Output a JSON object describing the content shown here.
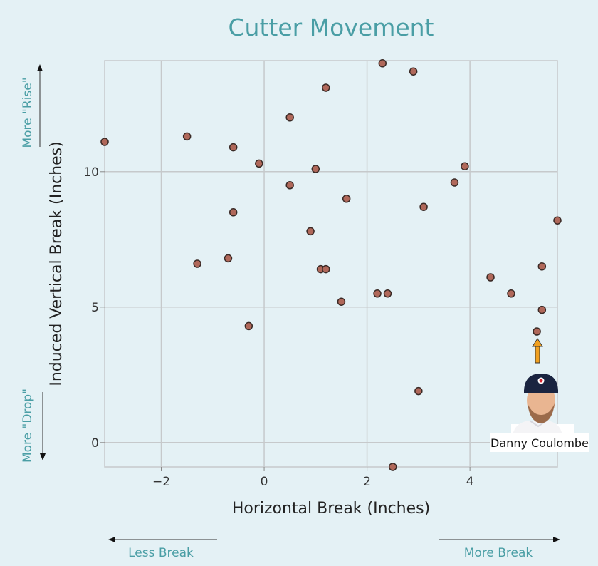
{
  "chart_data": {
    "type": "scatter",
    "title": "Cutter Movement",
    "xlabel": "Horizontal Break (Inches)",
    "ylabel": "Induced Vertical Break (Inches)",
    "xlim": [
      -3.1,
      5.7
    ],
    "ylim": [
      -0.9,
      14.1
    ],
    "x_ticks": [
      -2,
      0,
      2,
      4
    ],
    "y_ticks": [
      0,
      5,
      10
    ],
    "x_tick_labels": [
      "−2",
      "0",
      "2",
      "4"
    ],
    "y_tick_labels": [
      "0",
      "5",
      "10"
    ],
    "grid": true,
    "points": [
      {
        "x": -3.1,
        "y": 11.1
      },
      {
        "x": -1.5,
        "y": 11.3
      },
      {
        "x": -1.3,
        "y": 6.6
      },
      {
        "x": -0.7,
        "y": 6.8
      },
      {
        "x": -0.6,
        "y": 10.9
      },
      {
        "x": -0.6,
        "y": 8.5
      },
      {
        "x": -0.3,
        "y": 4.3
      },
      {
        "x": -0.1,
        "y": 10.3
      },
      {
        "x": 0.5,
        "y": 12.0
      },
      {
        "x": 0.5,
        "y": 9.5
      },
      {
        "x": 0.9,
        "y": 7.8
      },
      {
        "x": 1.0,
        "y": 10.1
      },
      {
        "x": 1.1,
        "y": 6.4
      },
      {
        "x": 1.2,
        "y": 6.4
      },
      {
        "x": 1.2,
        "y": 13.1
      },
      {
        "x": 1.5,
        "y": 5.2
      },
      {
        "x": 1.6,
        "y": 9.0
      },
      {
        "x": 2.2,
        "y": 5.5
      },
      {
        "x": 2.3,
        "y": 14.0
      },
      {
        "x": 2.4,
        "y": 5.5
      },
      {
        "x": 2.5,
        "y": -0.9
      },
      {
        "x": 2.9,
        "y": 13.7
      },
      {
        "x": 3.0,
        "y": 1.9
      },
      {
        "x": 3.1,
        "y": 8.7
      },
      {
        "x": 3.7,
        "y": 9.6
      },
      {
        "x": 3.9,
        "y": 10.2
      },
      {
        "x": 4.4,
        "y": 6.1
      },
      {
        "x": 4.8,
        "y": 5.5
      },
      {
        "x": 5.3,
        "y": 4.1
      },
      {
        "x": 5.4,
        "y": 6.5
      },
      {
        "x": 5.4,
        "y": 4.9
      },
      {
        "x": 5.7,
        "y": 8.2
      }
    ],
    "highlight": {
      "name": "Danny Coulombe",
      "x": 5.3,
      "y": 4.1
    },
    "annotations": {
      "more_rise": "More \"Rise\"",
      "more_drop": "More \"Drop\"",
      "less_break": "Less Break",
      "more_break": "More Break"
    },
    "colors": {
      "background": "#e4f1f5",
      "plot_background": "#e4f1f5",
      "grid": "#c6c9cb",
      "point_fill": "#b0685a",
      "point_stroke": "#3a2a26",
      "title": "#4a9ea5",
      "accent_arrow": "#f0a020"
    }
  }
}
